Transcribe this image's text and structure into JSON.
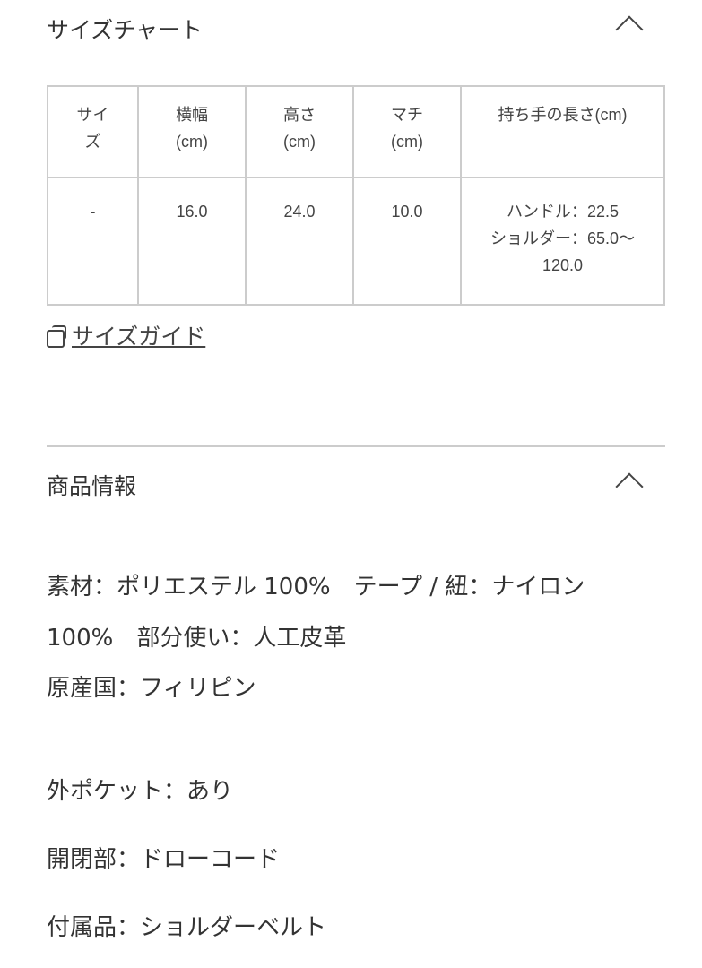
{
  "size_chart": {
    "title": "サイズチャート",
    "headers": [
      [
        "サイ",
        "ズ"
      ],
      [
        "横幅",
        "(cm)"
      ],
      [
        "高さ",
        "(cm)"
      ],
      [
        "マチ",
        "(cm)"
      ],
      [
        "持ち手の長さ(cm)"
      ]
    ],
    "row": [
      "-",
      "16.0",
      "24.0",
      "10.0",
      [
        "ハンドル：22.5",
        "ショルダー：65.0〜",
        "120.0"
      ]
    ],
    "size_guide_label": "サイズガイド"
  },
  "product_info": {
    "title": "商品情報",
    "lines": [
      "素材：ポリエステル 100%　テープ / 紐：ナイロン",
      "100%　部分使い：人工皮革",
      "原産国：フィリピン",
      "外ポケット：あり",
      "開閉部：ドローコード",
      "付属品：ショルダーベルト"
    ]
  }
}
